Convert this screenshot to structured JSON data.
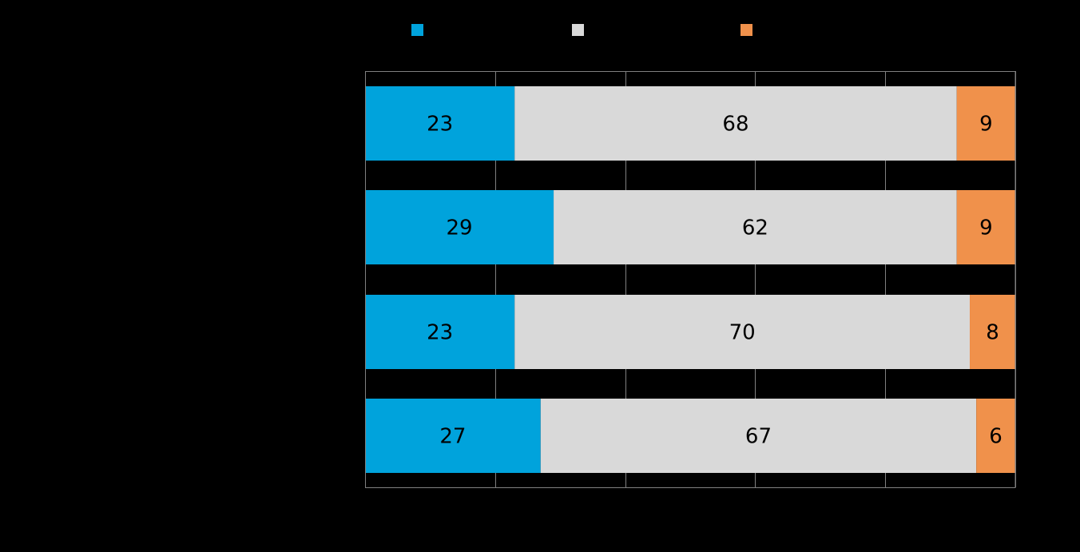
{
  "chart_data": {
    "type": "bar",
    "orientation": "horizontal",
    "stacked": true,
    "normalized_percent": true,
    "title": "",
    "xlabel": "",
    "ylabel": "",
    "xlim": [
      0,
      100
    ],
    "grid": true,
    "legend_position": "top",
    "categories": [
      "",
      "",
      "",
      ""
    ],
    "series": [
      {
        "name": "",
        "color": "#00a3dc",
        "values": [
          23,
          29,
          23,
          27
        ]
      },
      {
        "name": "",
        "color": "#d9d9d9",
        "values": [
          68,
          62,
          70,
          67
        ]
      },
      {
        "name": "",
        "color": "#f0914b",
        "values": [
          9,
          9,
          8,
          6
        ]
      }
    ]
  },
  "colors": {
    "background": "#000000",
    "gridline": "#808080"
  }
}
